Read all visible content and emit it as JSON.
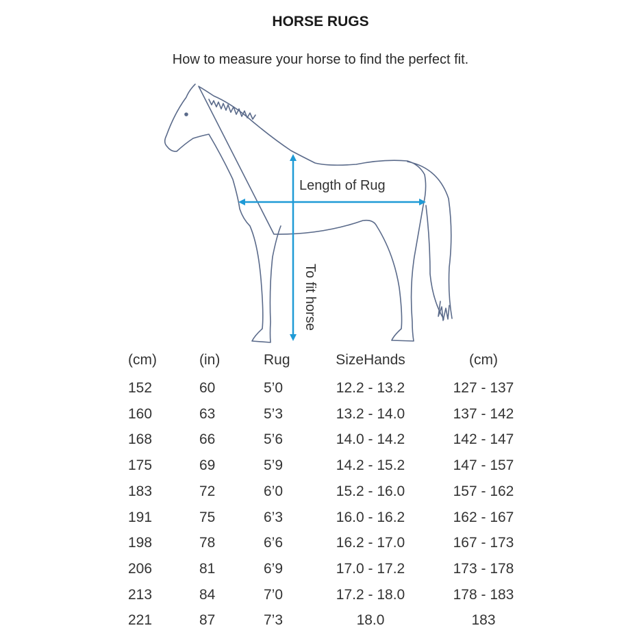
{
  "title": "HORSE RUGS",
  "subtitle": "How to measure your horse to find the perfect fit.",
  "diagram": {
    "length_label": "Length of Rug",
    "height_label": "To fit horse",
    "arrow_color": "#1e9ad6",
    "outline_color": "#5a6a8a"
  },
  "table": {
    "headers": [
      "(cm)",
      "(in)",
      "Rug",
      "SizeHands",
      "(cm)"
    ],
    "rows": [
      [
        "152",
        "60",
        "5’0",
        "12.2 - 13.2",
        "127 - 137"
      ],
      [
        "160",
        "63",
        "5’3",
        "13.2 - 14.0",
        "137 - 142"
      ],
      [
        "168",
        "66",
        "5’6",
        "14.0 - 14.2",
        "142 - 147"
      ],
      [
        "175",
        "69",
        "5’9",
        "14.2 - 15.2",
        "147 - 157"
      ],
      [
        "183",
        "72",
        "6’0",
        "15.2 - 16.0",
        "157 - 162"
      ],
      [
        "191",
        "75",
        "6’3",
        "16.0 - 16.2",
        "162 - 167"
      ],
      [
        "198",
        "78",
        "6’6",
        "16.2 - 17.0",
        "167 - 173"
      ],
      [
        "206",
        "81",
        "6’9",
        "17.0 - 17.2",
        "173 - 178"
      ],
      [
        "213",
        "84",
        "7’0",
        "17.2 - 18.0",
        "178 - 183"
      ],
      [
        "221",
        "87",
        "7’3",
        "18.0",
        "183"
      ]
    ]
  }
}
